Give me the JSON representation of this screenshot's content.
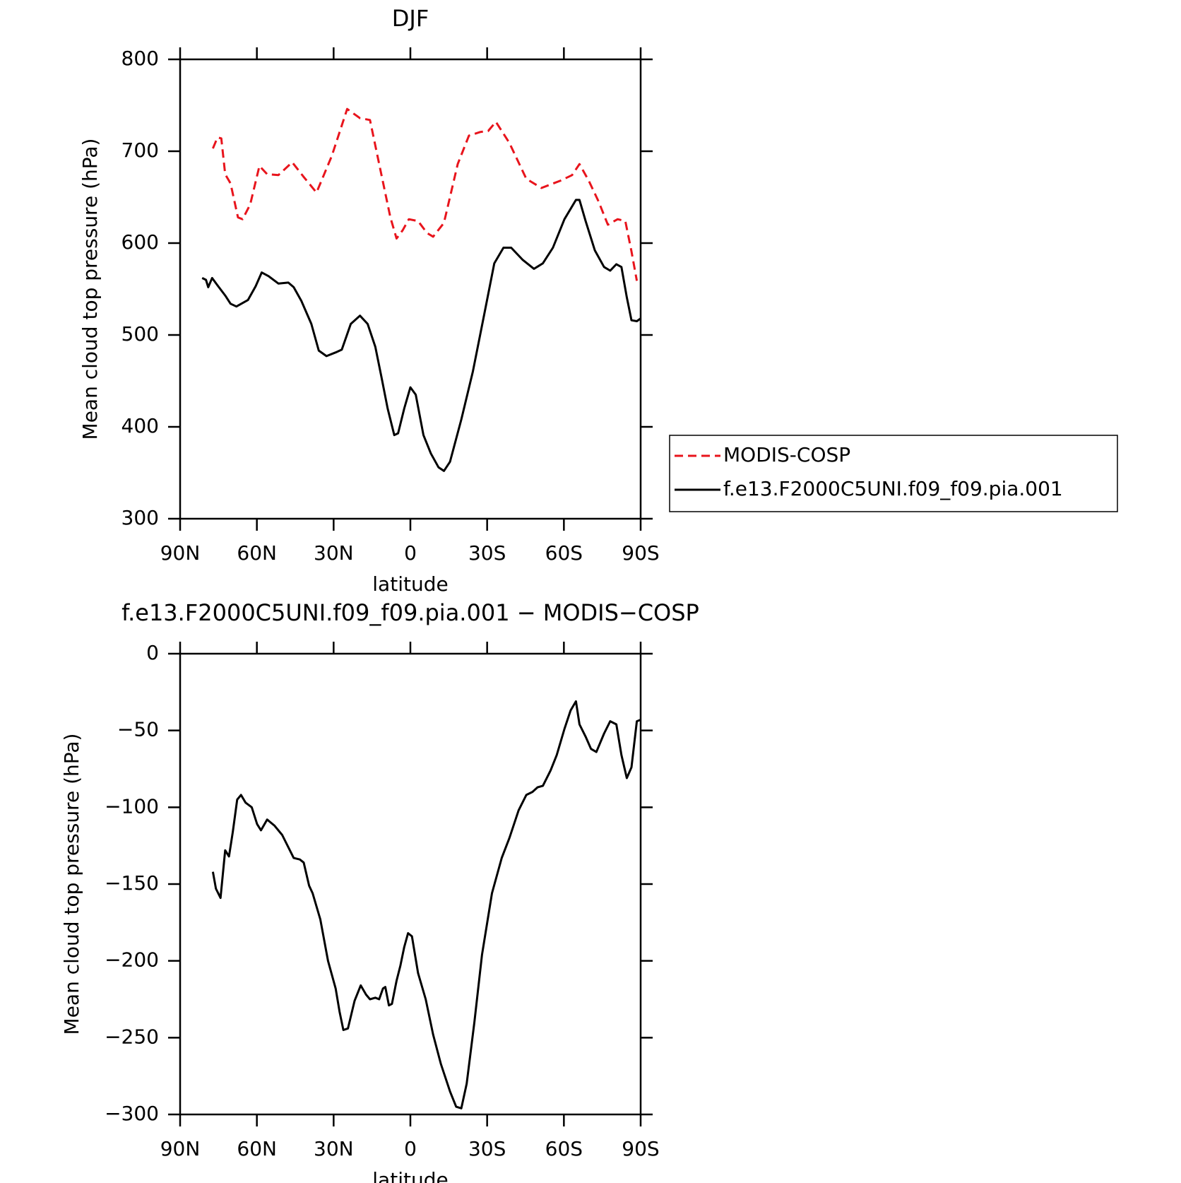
{
  "chart_data": [
    {
      "type": "line",
      "title": "DJF",
      "xlabel": "latitude",
      "ylabel": "Mean cloud top pressure (hPa)",
      "xlim": [
        90,
        -90
      ],
      "xticks": [
        {
          "value": 90,
          "label": "90N"
        },
        {
          "value": 60,
          "label": "60N"
        },
        {
          "value": 30,
          "label": "30N"
        },
        0,
        {
          "value": -30,
          "label": "30S"
        },
        {
          "value": -60,
          "label": "60S"
        },
        {
          "value": -90,
          "label": "90S"
        }
      ],
      "ylim": [
        300,
        800
      ],
      "yticks": [
        300,
        400,
        500,
        600,
        700,
        800
      ],
      "legend": "outside-right",
      "series": [
        {
          "name": "MODIS-COSP",
          "color": "#e8141c",
          "line_style": "dashed",
          "x": [
            77.2,
            75.4,
            73.9,
            72.4,
            70.3,
            67.4,
            65.6,
            62.6,
            59.0,
            56.0,
            51.6,
            46.2,
            41.7,
            36.7,
            30.7,
            24.7,
            19.7,
            15.8,
            11.3,
            7.8,
            5.4,
            3.0,
            0.6,
            -3.0,
            -6.5,
            -8.9,
            -13.1,
            -18.5,
            -22.9,
            -27.4,
            -30.4,
            -33.4,
            -38.7,
            -45.3,
            -51.2,
            -58.7,
            -63.2,
            -66.1,
            -69.7,
            -73.6,
            -77.2,
            -81.0,
            -84.0,
            -86.4,
            -88.5
          ],
          "values": [
            703,
            715,
            714,
            675,
            665,
            628,
            626,
            642,
            684,
            675,
            674,
            688,
            672,
            655,
            695,
            746,
            736,
            734,
            674,
            628,
            605,
            614,
            626,
            624,
            611,
            607,
            622,
            686,
            717,
            721,
            722,
            732,
            709,
            670,
            660,
            668,
            674,
            686,
            668,
            645,
            620,
            626,
            624,
            591,
            559
          ]
        },
        {
          "name": "f.e13.F2000C5UNI.f09_f09.pia.001",
          "color": "#000000",
          "line_style": "solid",
          "x": [
            81.4,
            79.9,
            79.0,
            77.5,
            75.4,
            72.4,
            70.3,
            68.0,
            63.5,
            60.5,
            58.1,
            55.4,
            51.6,
            47.7,
            45.6,
            42.6,
            38.7,
            35.8,
            32.8,
            29.2,
            26.8,
            23.3,
            19.7,
            16.7,
            13.7,
            11.3,
            8.9,
            6.3,
            4.8,
            2.4,
            0,
            -2.1,
            -5.1,
            -8.0,
            -11.0,
            -13.1,
            -15.5,
            -19.9,
            -24.4,
            -28.9,
            -32.8,
            -36.4,
            -39.4,
            -43.8,
            -48.3,
            -51.8,
            -55.7,
            -60.2,
            -64.7,
            -66.1,
            -68.5,
            -72.1,
            -75.7,
            -78.1,
            -80.5,
            -82.5,
            -84.6,
            -86.4,
            -88.5,
            -90
          ],
          "values": [
            562,
            560,
            552,
            562,
            554,
            543,
            534,
            531,
            538,
            553,
            568,
            564,
            556,
            557,
            552,
            537,
            512,
            483,
            477,
            481,
            484,
            512,
            521,
            512,
            487,
            454,
            420,
            391,
            393,
            420,
            443,
            435,
            391,
            371,
            356,
            352,
            362,
            408,
            460,
            523,
            578,
            595,
            595,
            582,
            572,
            578,
            595,
            626,
            647,
            647,
            624,
            592,
            574,
            570,
            577,
            574,
            541,
            516,
            515,
            518
          ]
        }
      ]
    },
    {
      "type": "line",
      "title": "f.e13.F2000C5UNI.f09_f09.pia.001 − MODIS−COSP",
      "xlabel": "latitude",
      "ylabel": "Mean cloud top pressure (hPa)",
      "xlim": [
        90,
        -90
      ],
      "xticks": [
        {
          "value": 90,
          "label": "90N"
        },
        {
          "value": 60,
          "label": "60N"
        },
        {
          "value": 30,
          "label": "30N"
        },
        0,
        {
          "value": -30,
          "label": "30S"
        },
        {
          "value": -60,
          "label": "60S"
        },
        {
          "value": -90,
          "label": "90S"
        }
      ],
      "ylim": [
        -300,
        0
      ],
      "yticks": [
        {
          "value": -300,
          "label": "−300"
        },
        {
          "value": -250,
          "label": "−250"
        },
        {
          "value": -200,
          "label": "−200"
        },
        {
          "value": -150,
          "label": "−150"
        },
        {
          "value": -100,
          "label": "−100"
        },
        {
          "value": -50,
          "label": "−50"
        },
        0
      ],
      "series": [
        {
          "color": "#000000",
          "line_style": "solid",
          "x": [
            77.2,
            76.0,
            74.2,
            72.4,
            70.9,
            69.4,
            67.7,
            66.2,
            64.4,
            62.0,
            59.9,
            58.4,
            56.0,
            53.1,
            50.1,
            45.6,
            43.2,
            41.7,
            39.6,
            38.2,
            35.2,
            32.2,
            29.2,
            27.7,
            26.2,
            24.4,
            21.8,
            19.4,
            17.3,
            15.8,
            13.7,
            12.2,
            10.7,
            9.8,
            8.4,
            7.2,
            5.4,
            3.9,
            2.4,
            0.9,
            -0.6,
            -3.0,
            -6.0,
            -8.9,
            -11.9,
            -15.5,
            -17.9,
            -19.9,
            -22.0,
            -25.0,
            -28.0,
            -31.9,
            -35.7,
            -38.7,
            -42.3,
            -45.3,
            -47.7,
            -49.7,
            -51.8,
            -54.8,
            -57.2,
            -60.2,
            -62.6,
            -64.7,
            -66.1,
            -68.5,
            -70.6,
            -72.7,
            -75.7,
            -78.1,
            -80.5,
            -82.5,
            -84.6,
            -86.4,
            -88.5,
            -90
          ],
          "values": [
            -142,
            -153,
            -159,
            -128,
            -132,
            -116,
            -95,
            -92,
            -97,
            -100,
            -111,
            -115,
            -108,
            -112,
            -118,
            -133,
            -134,
            -136,
            -151,
            -156,
            -173,
            -200,
            -218,
            -233,
            -245,
            -244,
            -226,
            -216,
            -222,
            -225,
            -224,
            -225,
            -218,
            -217,
            -229,
            -228,
            -213,
            -203,
            -191,
            -182,
            -184,
            -208,
            -225,
            -248,
            -267,
            -285,
            -295,
            -296,
            -280,
            -240,
            -196,
            -156,
            -133,
            -120,
            -102,
            -92,
            -90,
            -87,
            -86,
            -76,
            -66,
            -49,
            -37,
            -31,
            -46,
            -54,
            -62,
            -64,
            -52,
            -44,
            -46,
            -66,
            -81,
            -74,
            -44,
            -43
          ]
        }
      ]
    }
  ]
}
